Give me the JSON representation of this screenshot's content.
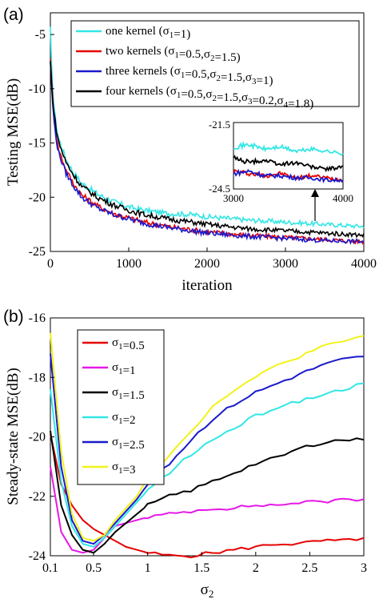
{
  "chart_data": [
    {
      "panel_label": "(a)",
      "type": "line",
      "xlabel": "iteration",
      "ylabel": "Testing MSE(dB)",
      "xlim": [
        0,
        4000
      ],
      "ylim": [
        -25,
        -3
      ],
      "xticks": [
        "0",
        "1000",
        "2000",
        "3000",
        "4000"
      ],
      "yticks": [
        "-5",
        "-10",
        "-15",
        "-20",
        "-25"
      ],
      "legend": "top-right",
      "series": [
        {
          "name": "one kernel (σ1=1)",
          "color": "#33e6e6",
          "x": [
            0,
            20,
            50,
            100,
            200,
            300,
            400,
            600,
            800,
            1000,
            1200,
            1500,
            1800,
            2000,
            2500,
            3000,
            3500,
            4000
          ],
          "y": [
            -4.5,
            -9,
            -12,
            -14.5,
            -16.5,
            -17.8,
            -18.7,
            -19.7,
            -20.4,
            -20.9,
            -21.2,
            -21.5,
            -21.6,
            -21.8,
            -22.1,
            -22.3,
            -22.5,
            -22.7
          ]
        },
        {
          "name": "two kernels (σ1=0.5,σ2=1.5)",
          "color": "#e60000",
          "x": [
            0,
            20,
            50,
            100,
            200,
            300,
            400,
            600,
            800,
            1000,
            1200,
            1500,
            1800,
            2000,
            2500,
            3000,
            3500,
            4000
          ],
          "y": [
            -7,
            -10,
            -13,
            -15.5,
            -17.5,
            -18.8,
            -19.8,
            -20.8,
            -21.5,
            -21.9,
            -22.3,
            -22.7,
            -23,
            -23.2,
            -23.5,
            -23.7,
            -23.9,
            -24.1
          ]
        },
        {
          "name": "three kernels (σ1=0.5,σ2=1.5,σ3=1)",
          "color": "#1a1acc",
          "x": [
            0,
            20,
            50,
            100,
            200,
            300,
            400,
            600,
            800,
            1000,
            1200,
            1500,
            1800,
            2000,
            2500,
            3000,
            3500,
            4000
          ],
          "y": [
            -7.5,
            -10.5,
            -13.3,
            -15.8,
            -17.8,
            -19,
            -20,
            -21,
            -21.6,
            -22,
            -22.4,
            -22.8,
            -23.1,
            -23.3,
            -23.6,
            -23.8,
            -24,
            -24.1
          ]
        },
        {
          "name": "four kernels (σ1=0.5,σ2=1.5,σ3=0.2,σ4=1.8)",
          "color": "#000000",
          "x": [
            0,
            20,
            50,
            100,
            200,
            300,
            400,
            600,
            800,
            1000,
            1200,
            1500,
            1800,
            2000,
            2500,
            3000,
            3500,
            4000
          ],
          "y": [
            -7.5,
            -10,
            -12.5,
            -14.8,
            -16.8,
            -18,
            -19,
            -20,
            -20.7,
            -21.2,
            -21.6,
            -22,
            -22.3,
            -22.5,
            -22.9,
            -23.1,
            -23.3,
            -23.5
          ]
        }
      ],
      "inset": {
        "xlim": [
          3000,
          4000
        ],
        "ylim": [
          -24.5,
          -21.5
        ],
        "xticks": [
          "3000",
          "4000"
        ],
        "yticks": [
          "-21.5",
          "-24.5"
        ],
        "series": [
          {
            "color": "#33e6e6",
            "y": [
              -22.6,
              -22.5,
              -22.7,
              -22.6,
              -22.8,
              -22.7,
              -22.8,
              -22.9
            ]
          },
          {
            "color": "#000000",
            "y": [
              -23.1,
              -23.3,
              -23.2,
              -23.4,
              -23.3,
              -23.5,
              -23.6,
              -23.5
            ]
          },
          {
            "color": "#e60000",
            "y": [
              -23.7,
              -23.8,
              -23.9,
              -23.8,
              -24.0,
              -23.9,
              -24.0,
              -24.1
            ]
          },
          {
            "color": "#1a1acc",
            "y": [
              -23.8,
              -23.7,
              -23.9,
              -23.9,
              -24.0,
              -24.0,
              -24.1,
              -24.1
            ]
          }
        ]
      }
    },
    {
      "panel_label": "(b)",
      "type": "line",
      "xlabel": "σ2",
      "ylabel": "Steady-state MSE(dB)",
      "xlim": [
        0.1,
        3
      ],
      "ylim": [
        -24,
        -16
      ],
      "xticks": [
        "0.1",
        "0.5",
        "1",
        "1.5",
        "2",
        "2.5",
        "3"
      ],
      "yticks": [
        "-16",
        "-18",
        "-20",
        "-22",
        "-24"
      ],
      "legend": "top-left",
      "x": [
        0.1,
        0.2,
        0.3,
        0.4,
        0.5,
        0.6,
        0.7,
        0.8,
        0.9,
        1.0,
        1.2,
        1.4,
        1.6,
        1.8,
        2.0,
        2.2,
        2.4,
        2.6,
        2.8,
        3.0
      ],
      "series": [
        {
          "name": "σ1=0.5",
          "color": "#e60000",
          "values": [
            -19.9,
            -21.6,
            -22.3,
            -22.8,
            -23.1,
            -23.3,
            -23.5,
            -23.7,
            -23.8,
            -23.9,
            -24.0,
            -24.0,
            -23.9,
            -23.8,
            -23.7,
            -23.6,
            -23.6,
            -23.5,
            -23.5,
            -23.4
          ]
        },
        {
          "name": "σ1=1",
          "color": "#e619e6",
          "values": [
            -21.0,
            -23.2,
            -23.8,
            -23.9,
            -23.8,
            -23.4,
            -23.0,
            -22.9,
            -22.8,
            -22.7,
            -22.6,
            -22.5,
            -22.4,
            -22.4,
            -22.3,
            -22.3,
            -22.2,
            -22.2,
            -22.1,
            -22.1
          ]
        },
        {
          "name": "σ1=1.5",
          "color": "#000000",
          "values": [
            -19.8,
            -22.3,
            -23.3,
            -23.8,
            -23.9,
            -23.6,
            -23.2,
            -22.9,
            -22.6,
            -22.3,
            -22.0,
            -21.8,
            -21.5,
            -21.2,
            -20.9,
            -20.7,
            -20.4,
            -20.2,
            -20.1,
            -20.1
          ]
        },
        {
          "name": "σ1=2",
          "color": "#33e6e6",
          "values": [
            -18.4,
            -21.5,
            -23.0,
            -23.6,
            -23.7,
            -23.4,
            -23.0,
            -22.6,
            -22.2,
            -21.8,
            -21.2,
            -20.6,
            -20.1,
            -19.7,
            -19.3,
            -19.0,
            -18.8,
            -18.6,
            -18.4,
            -18.2
          ]
        },
        {
          "name": "σ1=2.5",
          "color": "#1a1acc",
          "values": [
            -17.2,
            -21.0,
            -22.8,
            -23.5,
            -23.6,
            -23.3,
            -22.9,
            -22.5,
            -22.1,
            -21.6,
            -20.9,
            -20.1,
            -19.4,
            -18.9,
            -18.5,
            -18.2,
            -17.9,
            -17.6,
            -17.4,
            -17.3
          ]
        },
        {
          "name": "σ1=3",
          "color": "#f2f21a",
          "values": [
            -16.5,
            -20.5,
            -22.6,
            -23.4,
            -23.5,
            -23.3,
            -22.8,
            -22.4,
            -22.0,
            -21.4,
            -20.6,
            -19.8,
            -19.0,
            -18.4,
            -18.0,
            -17.6,
            -17.3,
            -17.0,
            -16.8,
            -16.6
          ]
        }
      ]
    }
  ]
}
